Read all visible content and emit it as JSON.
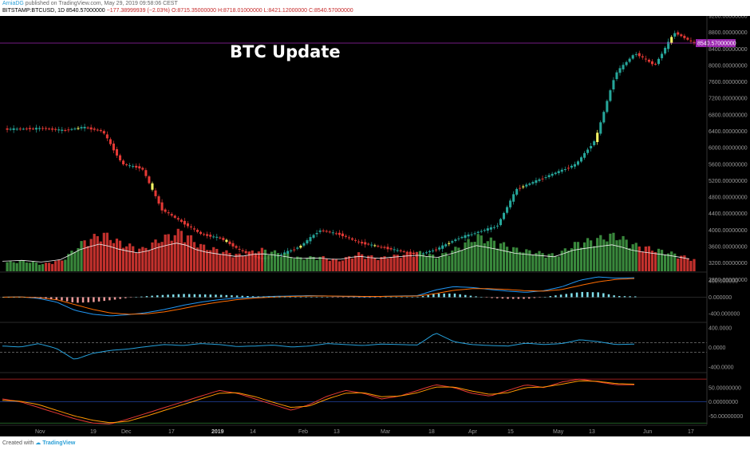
{
  "header": {
    "author": "ArniaDG",
    "published": "published on TradingView.com, May 29, 2019 09:58:06 CEST",
    "symbol_line": "BITSTAMP:BTCUSD, 1D  8540.57000000",
    "change": "−177.38999939 (−2.03%)",
    "ohlc": "O:8715.35000000  H:8718.01000000  L:8421.12000000  C:8540.57000000"
  },
  "footer": {
    "created_prefix": "Created with",
    "brand": "TradingView"
  },
  "colors": {
    "bull": "#26a69a",
    "bear": "#e53935",
    "vol_bull": "#43a047",
    "vol_bear": "#e53935",
    "highlight": "#ffff66",
    "ma": "#f0f0f0",
    "macd": "#2196f3",
    "signal": "#ff6d00",
    "rsi": "#26a0da",
    "k_line": "#e53935",
    "d_line": "#ff9800",
    "last_price": "#9c27b0",
    "axis_text": "#9a9a9a"
  },
  "chart_data": [
    {
      "type": "candlestick",
      "title": "BTC Update",
      "last_price": "8540.57000000",
      "ylim": [
        3000,
        9200
      ],
      "y_ticks": [
        "9200.00000000",
        "8800.00000000",
        "8400.00000000",
        "8000.00000000",
        "7600.00000000",
        "7200.00000000",
        "6800.00000000",
        "6400.00000000",
        "6000.00000000",
        "5600.00000000",
        "5200.00000000",
        "4800.00000000",
        "4400.00000000",
        "4000.00000000",
        "3600.00000000",
        "3200.00000000",
        "2800.00000000"
      ],
      "x_labels": [
        "Nov",
        "19",
        "Dec",
        "17",
        "2019",
        "14",
        "Feb",
        "13",
        "Mar",
        "18",
        "Apr",
        "15",
        "May",
        "13",
        "Jun",
        "17"
      ],
      "bold_x_label": "2019",
      "series": [
        {
          "name": "BTCUSD",
          "points": [
            [
              2018.83,
              6450
            ],
            [
              2018.84,
              6460
            ],
            [
              2018.85,
              6470
            ],
            [
              2018.86,
              6420
            ],
            [
              2018.87,
              6500
            ],
            [
              2018.88,
              6400
            ],
            [
              2018.88,
              5600
            ],
            [
              2018.89,
              5500
            ],
            [
              2018.9,
              4500
            ],
            [
              2018.91,
              4200
            ],
            [
              2018.92,
              3900
            ],
            [
              2018.93,
              3800
            ],
            [
              2018.94,
              3500
            ],
            [
              2018.95,
              3300
            ],
            [
              2018.96,
              3400
            ],
            [
              2018.97,
              3600
            ],
            [
              2018.98,
              4000
            ],
            [
              2018.99,
              3900
            ],
            [
              2019.0,
              3700
            ],
            [
              2019.04,
              3600
            ],
            [
              2019.08,
              3500
            ],
            [
              2019.12,
              3400
            ],
            [
              2019.16,
              3550
            ],
            [
              2019.2,
              3800
            ],
            [
              2019.24,
              3950
            ],
            [
              2019.25,
              4100
            ],
            [
              2019.27,
              5000
            ],
            [
              2019.3,
              5200
            ],
            [
              2019.33,
              5400
            ],
            [
              2019.36,
              5600
            ],
            [
              2019.38,
              6200
            ],
            [
              2019.4,
              7800
            ],
            [
              2019.42,
              8300
            ],
            [
              2019.44,
              8000
            ],
            [
              2019.46,
              8800
            ],
            [
              2019.47,
              8540
            ]
          ]
        }
      ]
    },
    {
      "type": "bar",
      "name": "volume",
      "values": [
        12,
        14,
        10,
        16,
        40,
        52,
        38,
        30,
        45,
        55,
        35,
        28,
        22,
        30,
        25,
        18,
        20,
        15,
        24,
        18,
        22,
        26,
        20,
        32,
        48,
        40,
        30,
        26,
        22,
        38,
        44,
        50,
        36,
        30,
        24,
        16
      ]
    },
    {
      "type": "line",
      "name": "MACD",
      "ylim": [
        -600,
        600
      ],
      "y_ticks": [
        "400.000000",
        "0.000000",
        "-400.000000"
      ],
      "series": [
        {
          "name": "macd",
          "values": [
            0,
            10,
            -30,
            -120,
            -320,
            -420,
            -460,
            -430,
            -380,
            -300,
            -200,
            -120,
            -60,
            -20,
            0,
            20,
            30,
            40,
            30,
            20,
            10,
            20,
            30,
            40,
            180,
            260,
            240,
            190,
            150,
            120,
            160,
            260,
            420,
            500,
            470,
            480
          ]
        },
        {
          "name": "signal",
          "values": [
            0,
            5,
            -10,
            -60,
            -180,
            -300,
            -390,
            -420,
            -410,
            -360,
            -280,
            -190,
            -120,
            -60,
            -20,
            5,
            20,
            30,
            30,
            25,
            20,
            20,
            25,
            30,
            90,
            170,
            210,
            210,
            190,
            160,
            150,
            190,
            290,
            380,
            440,
            460
          ]
        }
      ]
    },
    {
      "type": "line",
      "name": "Oscillator",
      "ylim": [
        -500,
        500
      ],
      "y_ticks": [
        "400.0000",
        "0.0000",
        "-400.0000"
      ],
      "series": [
        {
          "name": "value",
          "values": [
            30,
            10,
            80,
            -20,
            -250,
            -120,
            -60,
            -30,
            20,
            60,
            40,
            80,
            60,
            20,
            30,
            50,
            10,
            30,
            80,
            60,
            40,
            70,
            60,
            50,
            300,
            120,
            60,
            40,
            30,
            90,
            60,
            80,
            160,
            120,
            60,
            70
          ]
        }
      ]
    },
    {
      "type": "line",
      "name": "Stoch RSI",
      "ylim": [
        -80,
        100
      ],
      "y_ticks": [
        "50.00000000",
        "0.00000000",
        "-50.00000000"
      ],
      "series": [
        {
          "name": "k",
          "values": [
            10,
            0,
            -20,
            -40,
            -60,
            -75,
            -78,
            -60,
            -40,
            -20,
            0,
            20,
            40,
            30,
            10,
            -10,
            -30,
            -10,
            20,
            40,
            30,
            10,
            20,
            40,
            60,
            50,
            30,
            20,
            40,
            60,
            50,
            70,
            80,
            70,
            60,
            60
          ]
        },
        {
          "name": "d",
          "values": [
            5,
            2,
            -10,
            -30,
            -50,
            -65,
            -74,
            -68,
            -50,
            -30,
            -10,
            10,
            30,
            32,
            18,
            -2,
            -20,
            -15,
            10,
            30,
            32,
            18,
            20,
            32,
            52,
            52,
            38,
            26,
            32,
            50,
            52,
            62,
            74,
            72,
            64,
            62
          ]
        }
      ]
    }
  ]
}
